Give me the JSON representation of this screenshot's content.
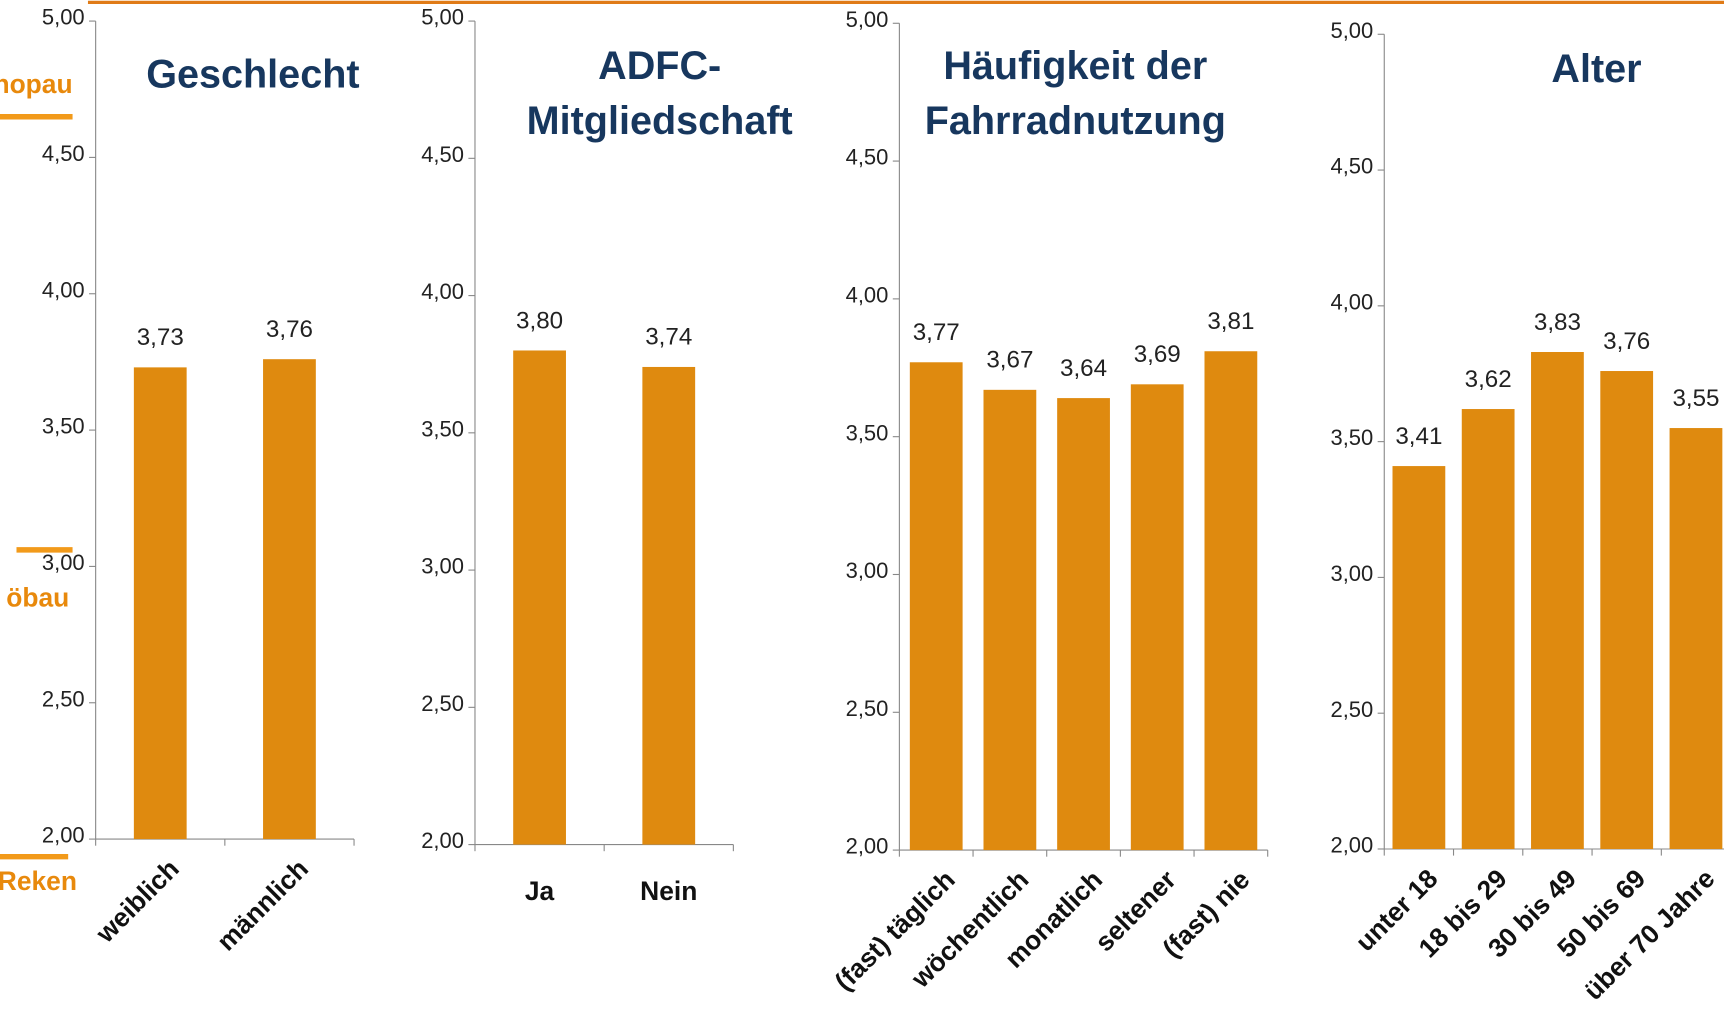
{
  "annotations": [
    "chopau",
    "öbau",
    "Reken"
  ],
  "chart_data": [
    {
      "type": "bar",
      "title": [
        "Geschlecht"
      ],
      "categories": [
        "weiblich",
        "männlich"
      ],
      "values": [
        3.73,
        3.76
      ],
      "value_labels": [
        "3,73",
        "3,76"
      ],
      "color": "#df8a0f",
      "ylim": [
        2,
        5
      ],
      "yticks": [
        {
          "value": 2,
          "label": "2,00"
        },
        {
          "value": 2.5,
          "label": "2,50"
        },
        {
          "value": 3,
          "label": "3,00"
        },
        {
          "value": 3.5,
          "label": "3,50"
        },
        {
          "value": 4,
          "label": "4,00"
        },
        {
          "value": 4.5,
          "label": "4,50"
        },
        {
          "value": 5,
          "label": "5,00"
        }
      ]
    },
    {
      "type": "bar",
      "title": [
        "ADFC-",
        "Mitgliedschaft"
      ],
      "categories": [
        "Ja",
        "Nein"
      ],
      "values": [
        3.8,
        3.74
      ],
      "value_labels": [
        "3,80",
        "3,74"
      ],
      "color": "#df8a0f",
      "ylim": [
        2,
        5
      ],
      "yticks": [
        {
          "value": 2,
          "label": "2,00"
        },
        {
          "value": 2.5,
          "label": "2,50"
        },
        {
          "value": 3,
          "label": "3,00"
        },
        {
          "value": 3.5,
          "label": "3,50"
        },
        {
          "value": 4,
          "label": "4,00"
        },
        {
          "value": 4.5,
          "label": "4,50"
        },
        {
          "value": 5,
          "label": "5,00"
        }
      ]
    },
    {
      "type": "bar",
      "title": [
        "Häufigkeit der",
        "Fahrradnutzung"
      ],
      "categories": [
        "(fast) täglich",
        "wöchentlich",
        "monatlich",
        "seltener",
        "(fast) nie"
      ],
      "values": [
        3.77,
        3.67,
        3.64,
        3.69,
        3.81
      ],
      "value_labels": [
        "3,77",
        "3,67",
        "3,64",
        "3,69",
        "3,81"
      ],
      "color": "#df8a0f",
      "ylim": [
        2,
        5
      ],
      "yticks": [
        {
          "value": 2,
          "label": "2,00"
        },
        {
          "value": 2.5,
          "label": "2,50"
        },
        {
          "value": 3,
          "label": "3,00"
        },
        {
          "value": 3.5,
          "label": "3,50"
        },
        {
          "value": 4,
          "label": "4,00"
        },
        {
          "value": 4.5,
          "label": "4,50"
        },
        {
          "value": 5,
          "label": "5,00"
        }
      ]
    },
    {
      "type": "bar",
      "title": [
        "Alter"
      ],
      "categories": [
        "unter 18",
        "18 bis 29",
        "30 bis 49",
        "50 bis 69",
        "über 70 Jahre"
      ],
      "values": [
        3.41,
        3.62,
        3.83,
        3.76,
        3.55
      ],
      "value_labels": [
        "3,41",
        "3,62",
        "3,83",
        "3,76",
        "3,55"
      ],
      "color": "#df8a0f",
      "ylim": [
        2,
        5
      ],
      "yticks": [
        {
          "value": 2,
          "label": "2,00"
        },
        {
          "value": 2.5,
          "label": "2,50"
        },
        {
          "value": 3,
          "label": "3,00"
        },
        {
          "value": 3.5,
          "label": "3,50"
        },
        {
          "value": 4,
          "label": "4,00"
        },
        {
          "value": 4.5,
          "label": "4,50"
        },
        {
          "value": 5,
          "label": "5,00"
        }
      ]
    }
  ]
}
